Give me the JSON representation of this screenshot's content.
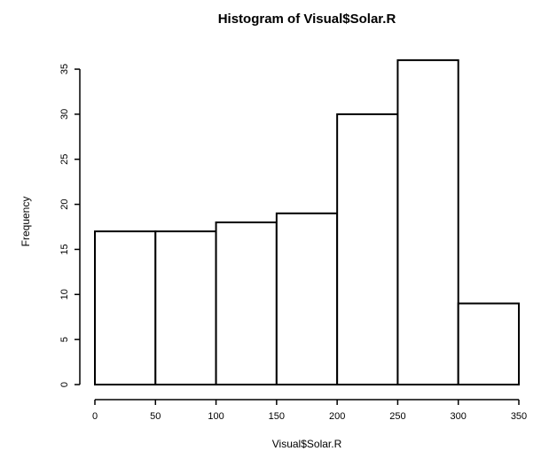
{
  "chart_data": {
    "type": "bar",
    "title": "Histogram of Visual$Solar.R",
    "xlabel": "Visual$Solar.R",
    "ylabel": "Frequency",
    "bins": [
      {
        "start": 0,
        "end": 50,
        "count": 17
      },
      {
        "start": 50,
        "end": 100,
        "count": 17
      },
      {
        "start": 100,
        "end": 150,
        "count": 18
      },
      {
        "start": 150,
        "end": 200,
        "count": 19
      },
      {
        "start": 200,
        "end": 250,
        "count": 30
      },
      {
        "start": 250,
        "end": 300,
        "count": 36
      },
      {
        "start": 300,
        "end": 350,
        "count": 9
      }
    ],
    "x_ticks": [
      0,
      50,
      100,
      150,
      200,
      250,
      300,
      350
    ],
    "x_tick_labels": [
      "0",
      "50",
      "100",
      "150",
      "200",
      "250",
      "300",
      "350"
    ],
    "y_ticks": [
      0,
      5,
      10,
      15,
      20,
      25,
      30,
      35
    ],
    "y_tick_labels": [
      "0",
      "5",
      "10",
      "15",
      "20",
      "25",
      "30",
      "35"
    ],
    "xlim": [
      0,
      350
    ],
    "ylim": [
      0,
      36
    ],
    "grid": false,
    "legend": "none"
  }
}
